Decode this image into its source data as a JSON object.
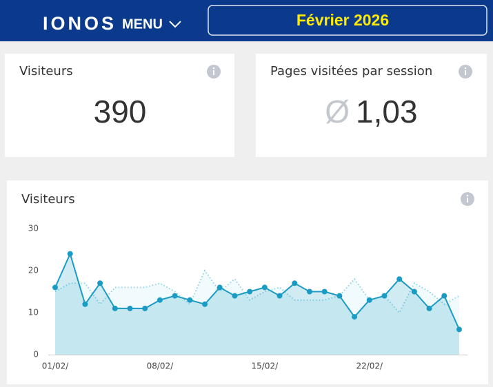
{
  "header": {
    "logo": "IONOS",
    "menu": "MENU",
    "period": "Février 2026"
  },
  "cards": [
    {
      "title": "Visiteurs",
      "value": "390"
    },
    {
      "title": "Pages visitées par session",
      "prefix": "Ø",
      "value": "1,03"
    }
  ],
  "chart_data": {
    "type": "line",
    "title": "Visiteurs",
    "categories": [
      "01/02/",
      null,
      null,
      null,
      null,
      null,
      null,
      "08/02/",
      null,
      null,
      null,
      null,
      null,
      null,
      "15/02/",
      null,
      null,
      null,
      null,
      null,
      null,
      "22/02/",
      null,
      null,
      null,
      null,
      null,
      null
    ],
    "series": [
      {
        "color": "#1a9bc4",
        "style": "solid",
        "values": [
          16,
          24,
          12,
          17,
          11,
          11,
          11,
          13,
          14,
          13,
          12,
          16,
          14,
          15,
          16,
          14,
          17,
          15,
          15,
          14,
          9,
          13,
          14,
          18,
          15,
          11,
          14,
          6
        ]
      },
      {
        "color": "#8fd3e8",
        "style": "dotted",
        "values": [
          15,
          17,
          17,
          12,
          16,
          16,
          16,
          17,
          15,
          12,
          20,
          15,
          18,
          13,
          15,
          16,
          13,
          13,
          13,
          14,
          18,
          13,
          14,
          10,
          17,
          15,
          12,
          14
        ]
      }
    ],
    "ylim": [
      0,
      30
    ],
    "yticks": [
      0,
      10,
      20,
      30
    ],
    "grid": false
  }
}
